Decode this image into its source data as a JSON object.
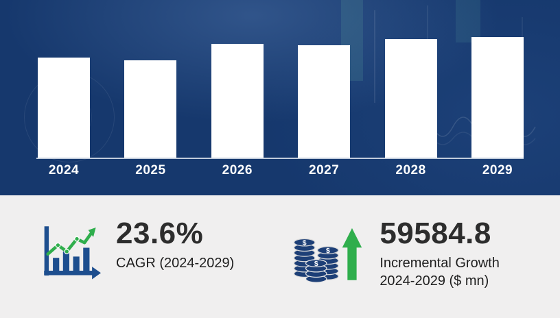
{
  "chart_data": {
    "type": "bar",
    "title": "",
    "categories": [
      "2024",
      "2025",
      "2026",
      "2027",
      "2028",
      "2029"
    ],
    "values": [
      82,
      80,
      93,
      92,
      97,
      99
    ],
    "ylim": [
      0,
      100
    ],
    "xlabel": "",
    "ylabel": "",
    "grid": false,
    "legend": false,
    "bar_color": "#ffffff",
    "background_color": "#16386d",
    "label_color": "#ffffff"
  },
  "stats": {
    "cagr": {
      "icon": "growth-chart-icon",
      "value": "23.6%",
      "label": "CAGR (2024-2029)"
    },
    "incremental_growth": {
      "icon": "coins-up-arrow-icon",
      "value": "59584.8",
      "label_line1": "Incremental Growth",
      "label_line2": "2024-2029 ($ mn)"
    }
  },
  "colors": {
    "chart_background": "#16386d",
    "bar_fill": "#ffffff",
    "panel_background": "#f0efef",
    "accent_green": "#2fae4c",
    "icon_navy": "#1d4e8e",
    "text_dark": "#2d2d2d"
  }
}
